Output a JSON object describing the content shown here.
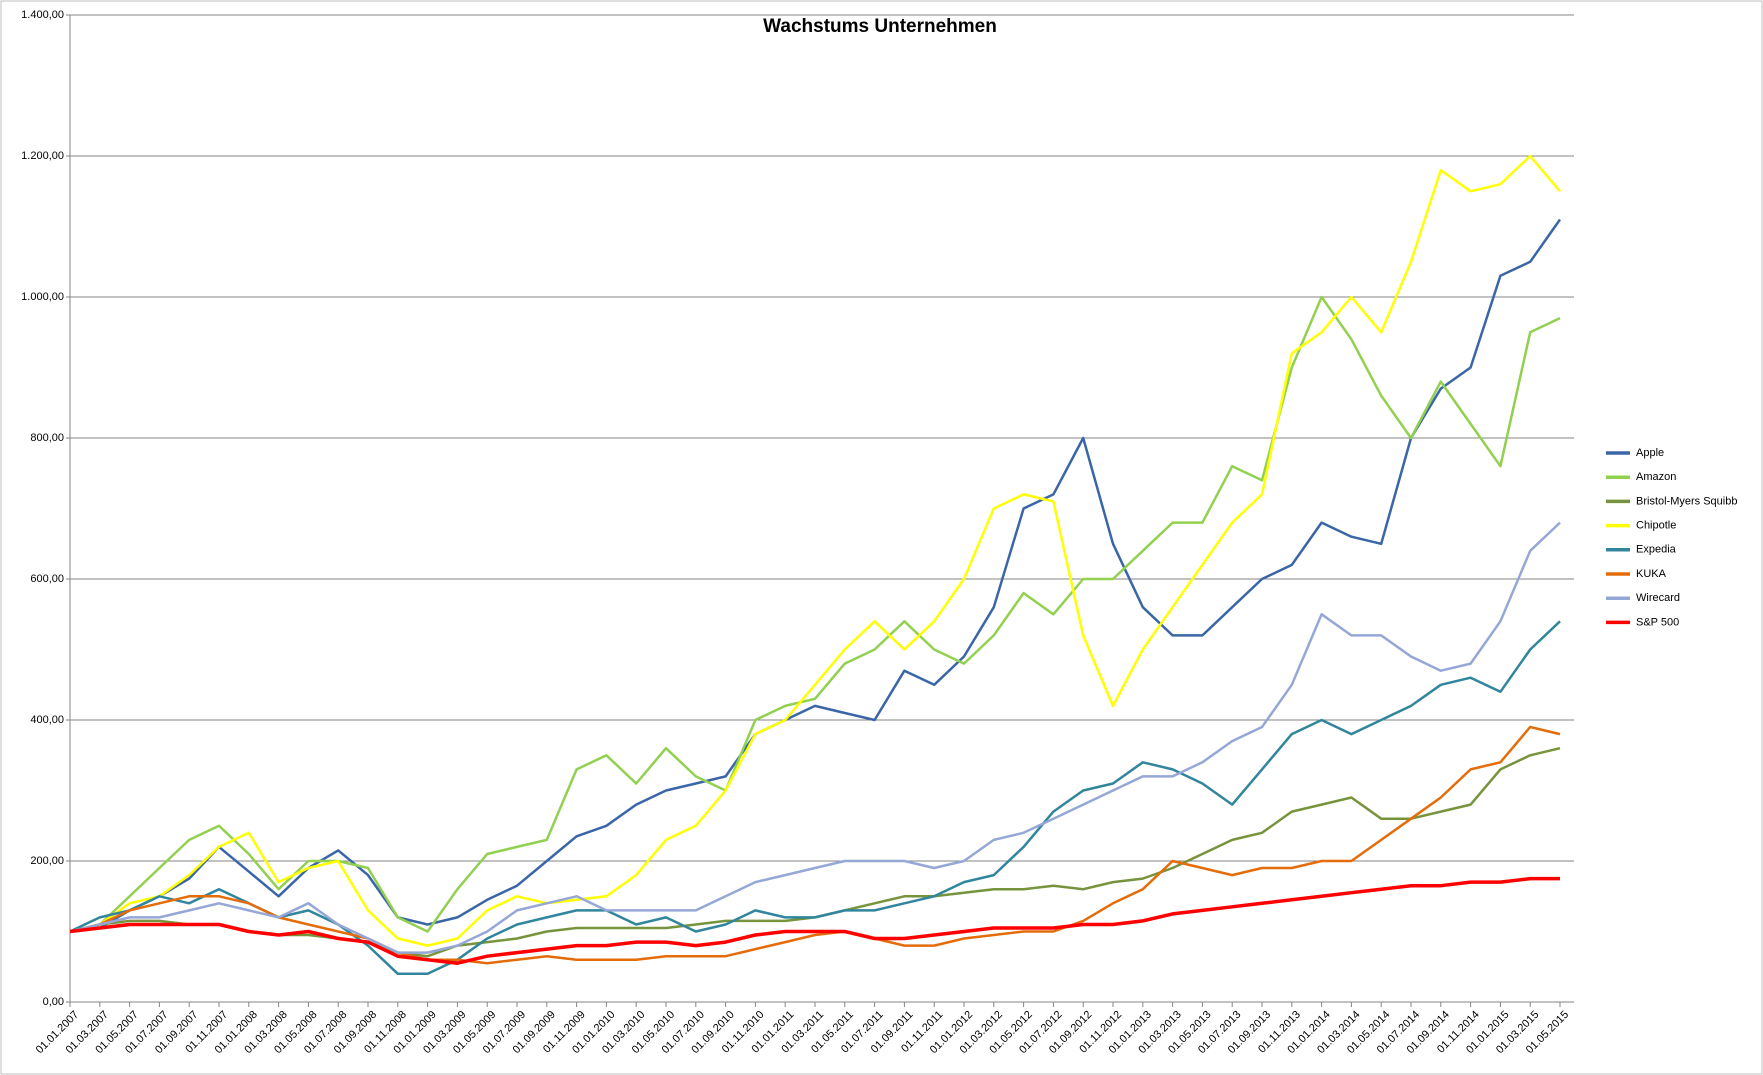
{
  "chart_data": {
    "type": "line",
    "title": "Wachstums Unternehmen",
    "categories": [
      "01.01.2007",
      "01.03.2007",
      "01.05.2007",
      "01.07.2007",
      "01.09.2007",
      "01.11.2007",
      "01.01.2008",
      "01.03.2008",
      "01.05.2008",
      "01.07.2008",
      "01.09.2008",
      "01.11.2008",
      "01.01.2009",
      "01.03.2009",
      "01.05.2009",
      "01.07.2009",
      "01.09.2009",
      "01.11.2009",
      "01.01.2010",
      "01.03.2010",
      "01.05.2010",
      "01.07.2010",
      "01.09.2010",
      "01.11.2010",
      "01.01.2011",
      "01.03.2011",
      "01.05.2011",
      "01.07.2011",
      "01.09.2011",
      "01.11.2011",
      "01.01.2012",
      "01.03.2012",
      "01.05.2012",
      "01.07.2012",
      "01.09.2012",
      "01.11.2012",
      "01.01.2013",
      "01.03.2013",
      "01.05.2013",
      "01.07.2013",
      "01.09.2013",
      "01.11.2013",
      "01.01.2014",
      "01.03.2014",
      "01.05.2014",
      "01.07.2014",
      "01.09.2014",
      "01.11.2014",
      "01.01.2015",
      "01.03.2015",
      "01.05.2015"
    ],
    "series": [
      {
        "name": "Apple",
        "color": "#3a66a7",
        "values": [
          100,
          105,
          130,
          150,
          175,
          220,
          185,
          150,
          190,
          215,
          180,
          120,
          110,
          120,
          145,
          165,
          200,
          235,
          250,
          280,
          300,
          310,
          320,
          380,
          400,
          420,
          410,
          400,
          470,
          450,
          490,
          560,
          700,
          720,
          800,
          650,
          560,
          520,
          520,
          560,
          600,
          620,
          680,
          660,
          650,
          800,
          870,
          900,
          1030,
          1050,
          1110
        ]
      },
      {
        "name": "Amazon",
        "color": "#92d050",
        "values": [
          100,
          110,
          150,
          190,
          230,
          250,
          210,
          160,
          200,
          200,
          190,
          120,
          100,
          160,
          210,
          220,
          230,
          330,
          350,
          310,
          360,
          320,
          300,
          400,
          420,
          430,
          480,
          500,
          540,
          500,
          480,
          520,
          580,
          550,
          600,
          600,
          640,
          680,
          680,
          760,
          740,
          900,
          1000,
          940,
          860,
          800,
          880,
          820,
          760,
          950,
          970
        ]
      },
      {
        "name": "Bristol-Myers Squibb",
        "color": "#77933c",
        "values": [
          100,
          110,
          115,
          115,
          110,
          110,
          100,
          95,
          95,
          90,
          85,
          70,
          65,
          80,
          85,
          90,
          100,
          105,
          105,
          105,
          105,
          110,
          115,
          115,
          115,
          120,
          130,
          140,
          150,
          150,
          155,
          160,
          160,
          165,
          160,
          170,
          175,
          190,
          210,
          230,
          240,
          270,
          280,
          290,
          260,
          260,
          270,
          280,
          330,
          350,
          360
        ]
      },
      {
        "name": "Chipotle",
        "color": "#ffff00",
        "values": [
          100,
          110,
          140,
          150,
          180,
          220,
          240,
          170,
          190,
          200,
          130,
          90,
          80,
          90,
          130,
          150,
          140,
          145,
          150,
          180,
          230,
          250,
          300,
          380,
          400,
          450,
          500,
          540,
          500,
          540,
          600,
          700,
          720,
          710,
          520,
          420,
          500,
          560,
          620,
          680,
          720,
          920,
          950,
          1000,
          950,
          1050,
          1180,
          1150,
          1160,
          1200,
          1150
        ]
      },
      {
        "name": "Expedia",
        "color": "#31859c",
        "values": [
          100,
          120,
          130,
          150,
          140,
          160,
          140,
          120,
          130,
          110,
          80,
          40,
          40,
          60,
          90,
          110,
          120,
          130,
          130,
          110,
          120,
          100,
          110,
          130,
          120,
          120,
          130,
          130,
          140,
          150,
          170,
          180,
          220,
          270,
          300,
          310,
          340,
          330,
          310,
          280,
          330,
          380,
          400,
          380,
          400,
          420,
          450,
          460,
          440,
          500,
          540
        ]
      },
      {
        "name": "KUKA",
        "color": "#e46c0a",
        "values": [
          100,
          110,
          130,
          140,
          150,
          150,
          140,
          120,
          110,
          100,
          90,
          70,
          60,
          60,
          55,
          60,
          65,
          60,
          60,
          60,
          65,
          65,
          65,
          75,
          85,
          95,
          100,
          90,
          80,
          80,
          90,
          95,
          100,
          100,
          115,
          140,
          160,
          200,
          190,
          180,
          190,
          190,
          200,
          200,
          230,
          260,
          290,
          330,
          340,
          390,
          380
        ]
      },
      {
        "name": "Wirecard",
        "color": "#95a7d6",
        "values": [
          100,
          110,
          120,
          120,
          130,
          140,
          130,
          120,
          140,
          110,
          90,
          70,
          70,
          80,
          100,
          130,
          140,
          150,
          130,
          130,
          130,
          130,
          150,
          170,
          180,
          190,
          200,
          200,
          200,
          190,
          200,
          230,
          240,
          260,
          280,
          300,
          320,
          320,
          340,
          370,
          390,
          450,
          550,
          520,
          520,
          490,
          470,
          480,
          540,
          640,
          680
        ]
      },
      {
        "name": "S&P 500",
        "color": "#ff0000",
        "values": [
          100,
          105,
          110,
          110,
          110,
          110,
          100,
          95,
          100,
          90,
          85,
          65,
          60,
          55,
          65,
          70,
          75,
          80,
          80,
          85,
          85,
          80,
          85,
          95,
          100,
          100,
          100,
          90,
          90,
          95,
          100,
          105,
          105,
          105,
          110,
          110,
          115,
          125,
          130,
          135,
          140,
          145,
          150,
          155,
          160,
          165,
          165,
          170,
          170,
          175,
          175
        ]
      }
    ],
    "ylim": [
      0,
      1400
    ],
    "yticks": [
      {
        "value": 0,
        "label": "0,00"
      },
      {
        "value": 200,
        "label": "200,00"
      },
      {
        "value": 400,
        "label": "400,00"
      },
      {
        "value": 600,
        "label": "600,00"
      },
      {
        "value": 800,
        "label": "800,00"
      },
      {
        "value": 1000,
        "label": "1.000,00"
      },
      {
        "value": 1200,
        "label": "1.200,00"
      },
      {
        "value": 1400,
        "label": "1.400,00"
      }
    ],
    "grid": true,
    "legend": "right"
  }
}
